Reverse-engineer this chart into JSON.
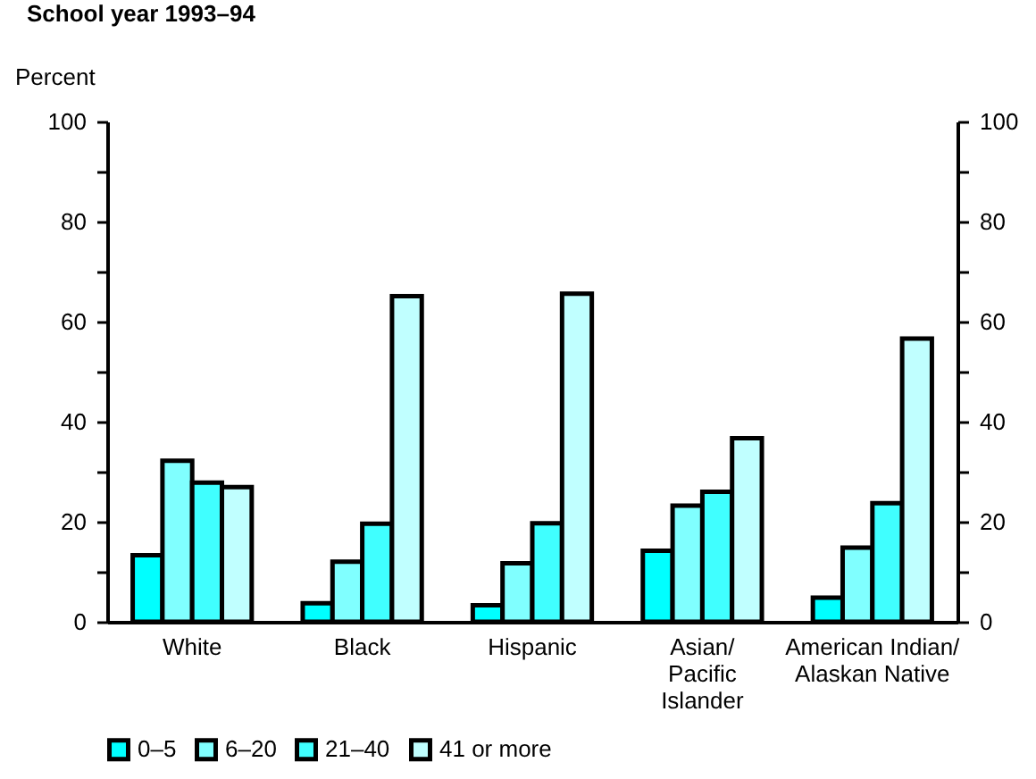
{
  "chart_data": {
    "type": "bar",
    "title": "School year 1993–94",
    "ylabel": "Percent",
    "categories": [
      "White",
      "Black",
      "Hispanic",
      "Asian/\nPacific\nIslander",
      "American Indian/\nAlaskan Native"
    ],
    "series": [
      {
        "name": "0–5",
        "color": "#00ffff",
        "values": [
          13.3,
          3.7,
          3.3,
          14.2,
          4.8
        ]
      },
      {
        "name": "6–20",
        "color": "#80ffff",
        "values": [
          32.2,
          12.0,
          11.7,
          23.2,
          14.8
        ]
      },
      {
        "name": "21–40",
        "color": "#40ffff",
        "values": [
          27.8,
          19.6,
          19.7,
          26.0,
          23.7
        ]
      },
      {
        "name": "41 or more",
        "color": "#c0ffff",
        "values": [
          26.9,
          65.1,
          65.6,
          36.7,
          56.6
        ]
      }
    ],
    "ylim": [
      0,
      100
    ],
    "yticks": [
      0,
      {
        "value": 10,
        "label": null
      },
      20,
      {
        "value": 30,
        "label": null
      },
      40,
      {
        "value": 50,
        "label": null
      },
      60,
      {
        "value": 70,
        "label": null
      },
      80,
      {
        "value": 90,
        "label": null
      },
      100
    ],
    "y2lim": [
      0,
      100
    ],
    "y2ticks": [
      0,
      {
        "value": 10,
        "label": null
      },
      20,
      {
        "value": 30,
        "label": null
      },
      40,
      {
        "value": 50,
        "label": null
      },
      60,
      {
        "value": 70,
        "label": null
      },
      80,
      {
        "value": 90,
        "label": null
      },
      100
    ],
    "grid": false,
    "legend": "bottom"
  }
}
